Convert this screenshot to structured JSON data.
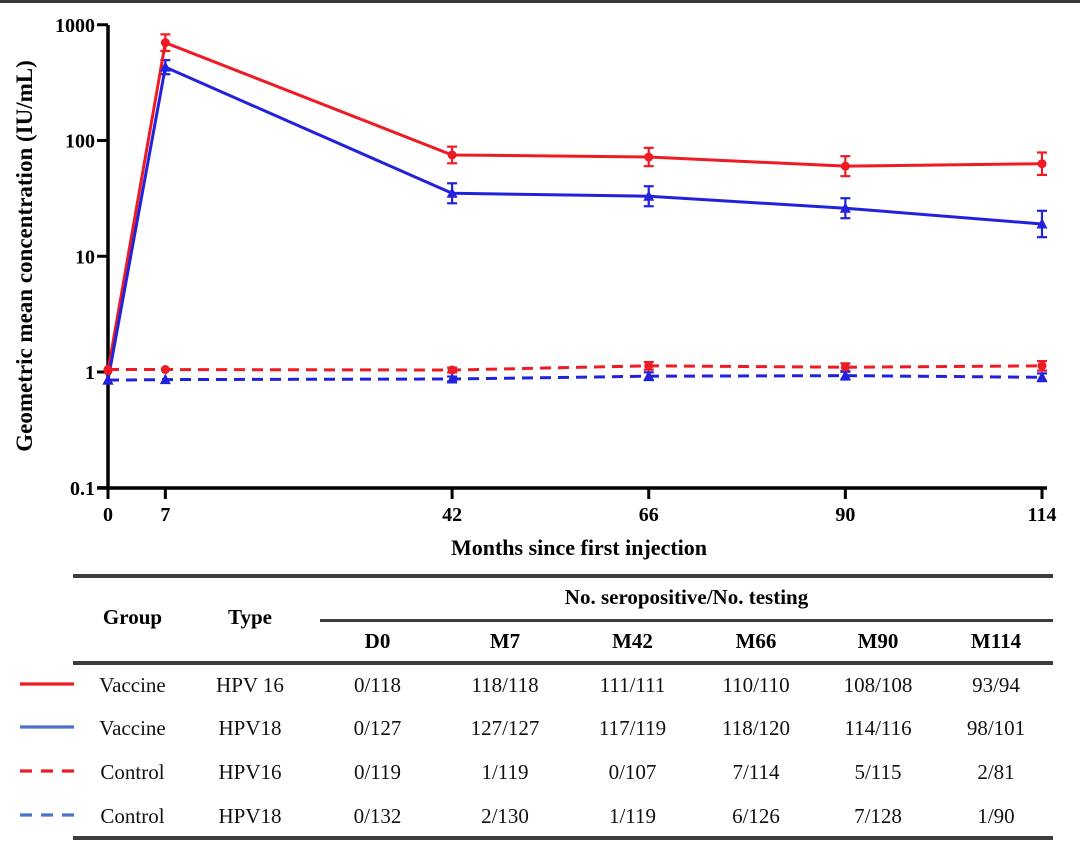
{
  "page": {
    "top_border_color": "#3a3a3a",
    "background": "#ffffff",
    "rule_color": "#3d3d3d"
  },
  "chart_data": {
    "type": "line",
    "y_scale": "log10",
    "ylabel": "Geometric mean concentration (IU/mL)",
    "xlabel": "Months since first injection",
    "x": [
      0,
      7,
      42,
      66,
      90,
      114
    ],
    "x_tick_labels": [
      "0",
      "7",
      "42",
      "66",
      "90",
      "114"
    ],
    "y_ticks": [
      1000,
      100,
      10,
      1,
      0.1
    ],
    "y_tick_labels": [
      "1000",
      "100",
      "10",
      "1",
      "0.1"
    ],
    "ylim": [
      0.1,
      1000
    ],
    "xlim": [
      0,
      114
    ],
    "grid": "off",
    "legend_position": "table-below",
    "axis_color": "#000000",
    "series": [
      {
        "name": "Vaccine HPV 16",
        "color": "#ed1c24",
        "style": "solid",
        "marker": "circle",
        "values": [
          1.02,
          700,
          75,
          72,
          60,
          63
        ],
        "err_factor": [
          1,
          1.18,
          1.18,
          1.2,
          1.22,
          1.25
        ]
      },
      {
        "name": "Vaccine HPV18",
        "color": "#2222dd",
        "style": "solid",
        "marker": "triangle",
        "values": [
          0.85,
          430,
          35,
          33,
          26,
          19
        ],
        "err_factor": [
          1,
          1.15,
          1.22,
          1.22,
          1.22,
          1.3
        ]
      },
      {
        "name": "Control HPV16",
        "color": "#ed1c24",
        "style": "dashed",
        "marker": "circle",
        "values": [
          1.05,
          1.05,
          1.04,
          1.13,
          1.1,
          1.13
        ],
        "err_factor": [
          1,
          1,
          1.05,
          1.08,
          1.08,
          1.1
        ]
      },
      {
        "name": "Control HPV18",
        "color": "#2222dd",
        "style": "dashed",
        "marker": "triangle",
        "values": [
          0.85,
          0.86,
          0.87,
          0.92,
          0.93,
          0.9
        ],
        "err_factor": [
          1,
          1,
          1.05,
          1.08,
          1.08,
          1.08
        ]
      }
    ]
  },
  "table": {
    "col_group": "Group",
    "col_type": "Type",
    "span_header": "No. seropositive/No. testing",
    "time_cols": [
      "D0",
      "M7",
      "M42",
      "M66",
      "M90",
      "M114"
    ],
    "legend_colors": {
      "red": "#ed1c24",
      "blue": "#4d74cc"
    },
    "rows": [
      {
        "legend_style": "solid",
        "legend_color": "#ed1c24",
        "group": "Vaccine",
        "type": "HPV 16",
        "values": [
          "0/118",
          "118/118",
          "111/111",
          "110/110",
          "108/108",
          "93/94"
        ]
      },
      {
        "legend_style": "solid",
        "legend_color": "#4d74cc",
        "group": "Vaccine",
        "type": "HPV18",
        "values": [
          "0/127",
          "127/127",
          "117/119",
          "118/120",
          "114/116",
          "98/101"
        ]
      },
      {
        "legend_style": "dashed",
        "legend_color": "#ed1c24",
        "group": "Control",
        "type": "HPV16",
        "values": [
          "0/119",
          "1/119",
          "0/107",
          "7/114",
          "5/115",
          "2/81"
        ]
      },
      {
        "legend_style": "dashed",
        "legend_color": "#4d74cc",
        "group": "Control",
        "type": "HPV18",
        "values": [
          "0/132",
          "2/130",
          "1/119",
          "6/126",
          "7/128",
          "1/90"
        ]
      }
    ]
  }
}
